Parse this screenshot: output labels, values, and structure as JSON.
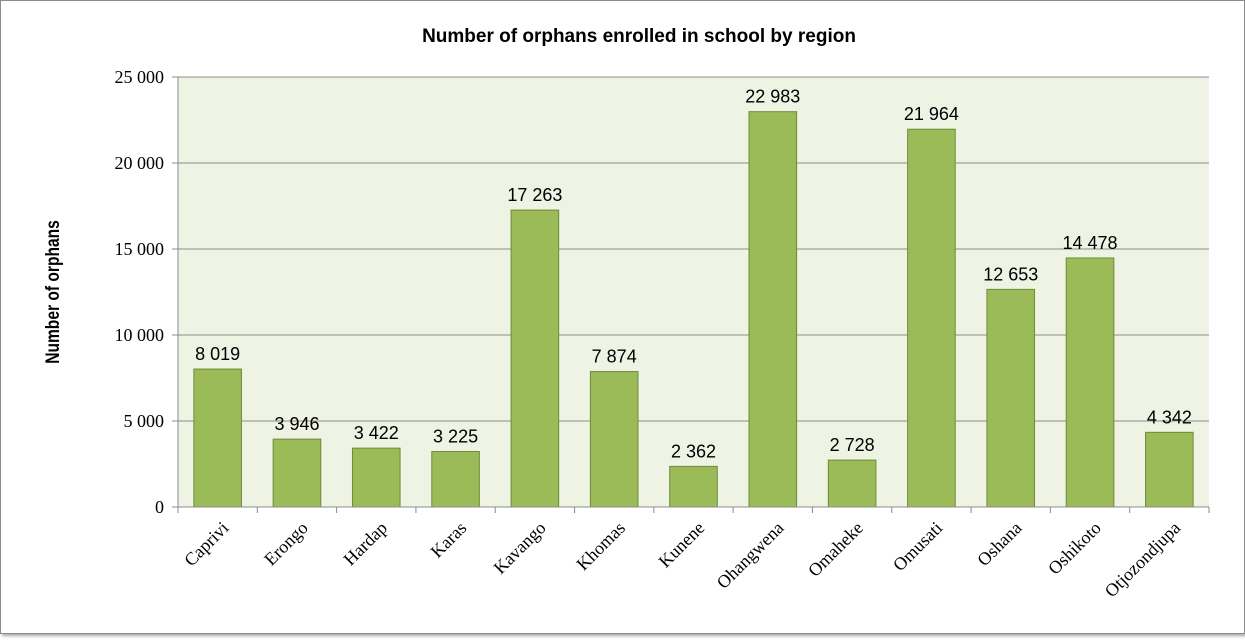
{
  "chart_data": {
    "type": "bar",
    "title": "Number of orphans enrolled in school by region",
    "xlabel": "",
    "ylabel": "Number of orphans",
    "ylim": [
      0,
      25000
    ],
    "yticks": [
      0,
      5000,
      10000,
      15000,
      20000,
      25000
    ],
    "ytick_labels": [
      "0",
      "5 000",
      "10 000",
      "15 000",
      "20 000",
      "25 000"
    ],
    "grid": true,
    "legend": "none",
    "categories": [
      "Caprivi",
      "Erongo",
      "Hardap",
      "Karas",
      "Kavango",
      "Khomas",
      "Kunene",
      "Ohangwena",
      "Omaheke",
      "Omusati",
      "Oshana",
      "Oshikoto",
      "Otjozondjupa"
    ],
    "values": [
      8019,
      3946,
      3422,
      3225,
      17263,
      7874,
      2362,
      22983,
      2728,
      21964,
      12653,
      14478,
      4342
    ],
    "value_labels": [
      "8 019",
      "3 946",
      "3 422",
      "3 225",
      "17 263",
      "7 874",
      "2 362",
      "22 983",
      "2 728",
      "21 964",
      "12 653",
      "14 478",
      "4 342"
    ],
    "colors": {
      "bar_fill": "#9bbb59",
      "bar_stroke": "#6e8a3a",
      "plot_background": "#eef3e4",
      "gridline": "#8c8c8c",
      "axis": "#8c8c8c"
    }
  }
}
